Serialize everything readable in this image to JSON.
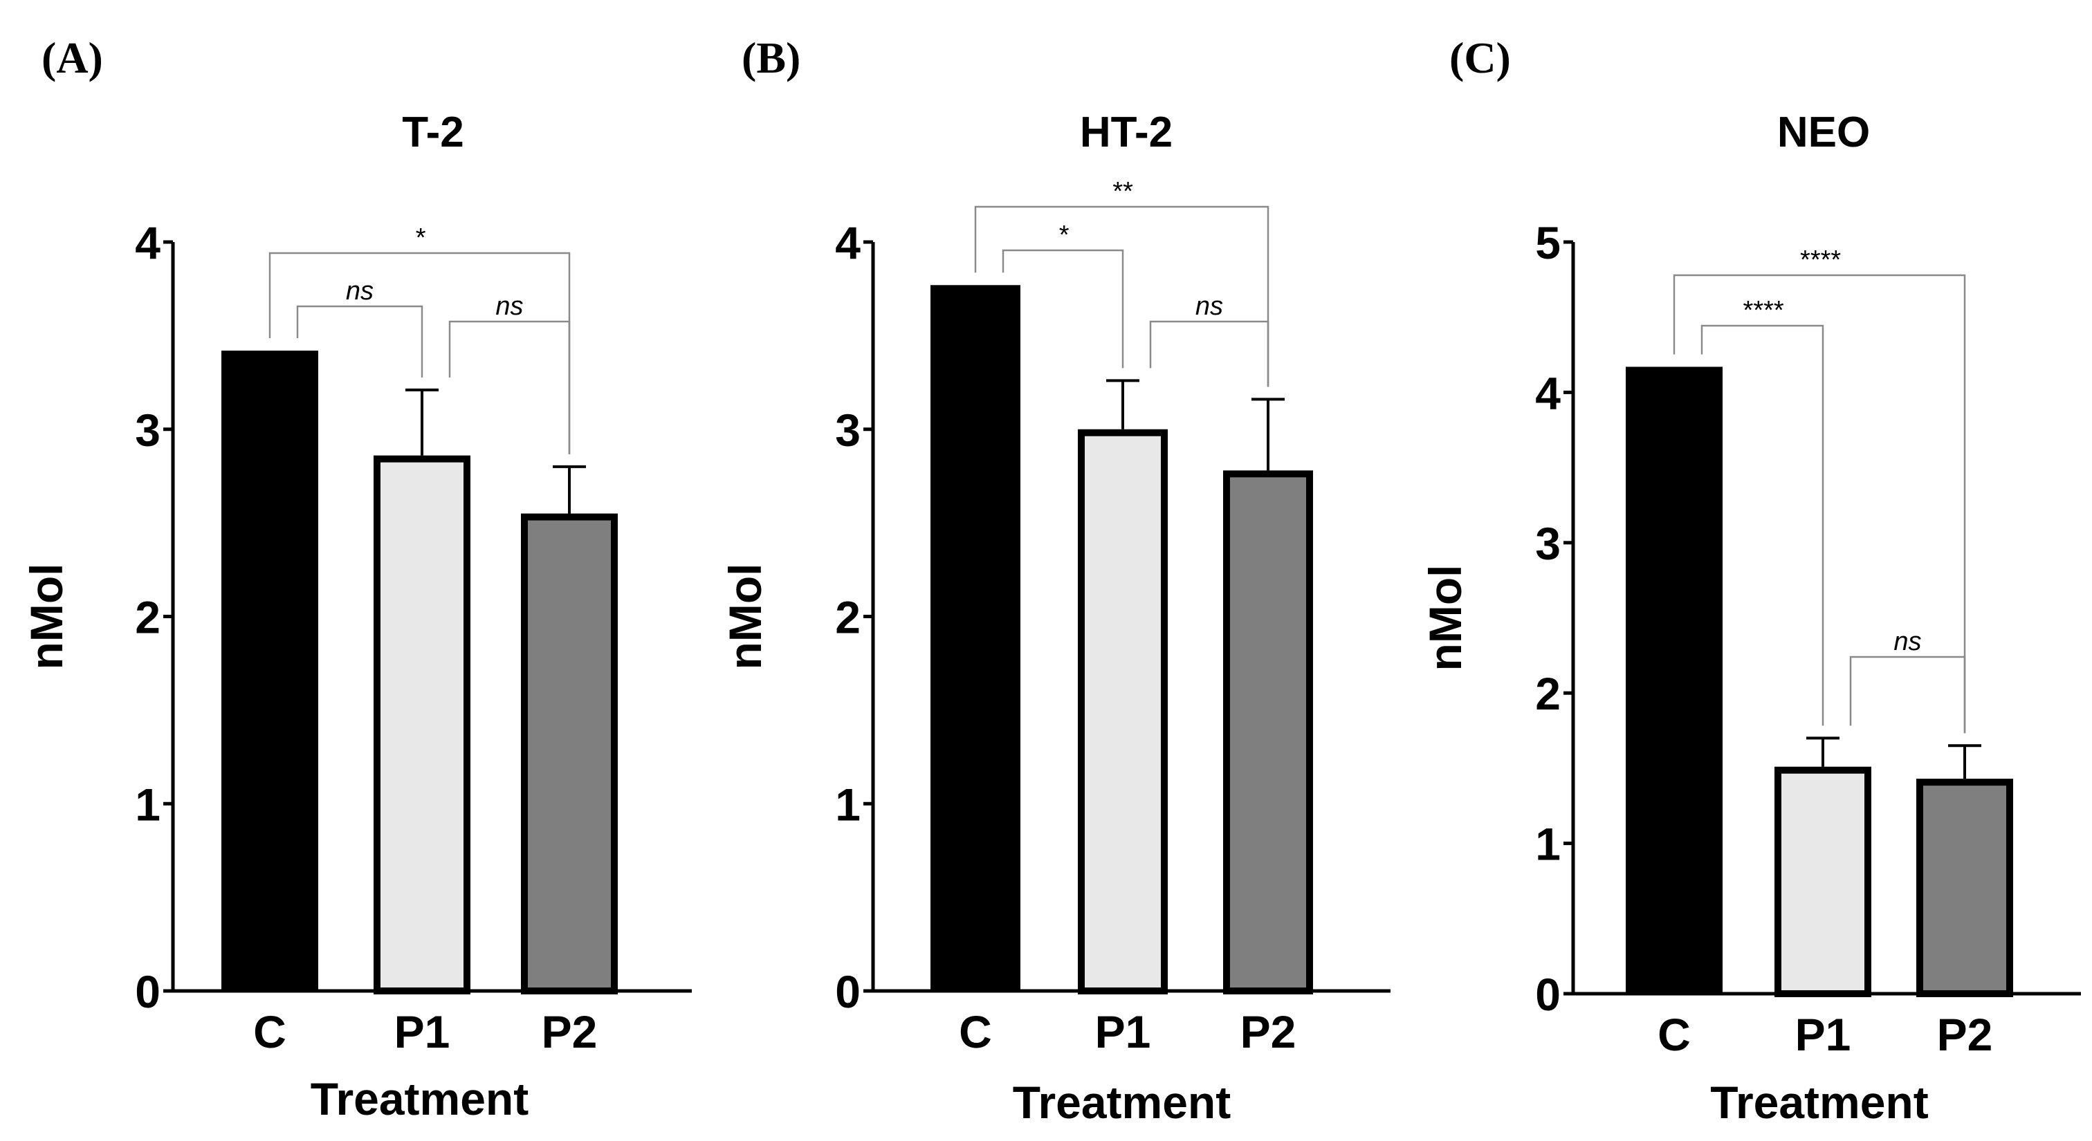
{
  "chart_data": [
    {
      "panel_label": "(A)",
      "type": "bar",
      "title": "T-2",
      "xlabel": "Treatment",
      "ylabel": "nMol",
      "ylim": [
        0,
        4
      ],
      "yticks": [
        "0",
        "1",
        "2",
        "3",
        "4"
      ],
      "categories": [
        "C",
        "P1",
        "P2"
      ],
      "values": [
        3.42,
        2.86,
        2.55
      ],
      "errors": [
        0,
        0.35,
        0.25
      ],
      "fills": [
        "#000000",
        "#e8e8e8",
        "#7f7f7f"
      ],
      "comparisons": [
        {
          "from": 0,
          "to": 1,
          "label": "ns"
        },
        {
          "from": 1,
          "to": 2,
          "label": "ns"
        },
        {
          "from": 0,
          "to": 2,
          "label": "*"
        }
      ]
    },
    {
      "panel_label": "(B)",
      "type": "bar",
      "title": "HT-2",
      "xlabel": "Treatment",
      "ylabel": "nMol",
      "ylim": [
        0,
        4
      ],
      "yticks": [
        "0",
        "1",
        "2",
        "3",
        "4"
      ],
      "categories": [
        "C",
        "P1",
        "P2"
      ],
      "values": [
        3.77,
        3.0,
        2.78
      ],
      "errors": [
        0,
        0.26,
        0.38
      ],
      "fills": [
        "#000000",
        "#e8e8e8",
        "#7f7f7f"
      ],
      "comparisons": [
        {
          "from": 0,
          "to": 1,
          "label": "*"
        },
        {
          "from": 1,
          "to": 2,
          "label": "ns"
        },
        {
          "from": 0,
          "to": 2,
          "label": "**"
        }
      ]
    },
    {
      "panel_label": "(C)",
      "type": "bar",
      "title": "NEO",
      "xlabel": "Treatment",
      "ylabel": "nMol",
      "ylim": [
        0,
        5
      ],
      "yticks": [
        "0",
        "1",
        "2",
        "3",
        "4",
        "5"
      ],
      "categories": [
        "C",
        "P1",
        "P2"
      ],
      "values": [
        4.17,
        1.51,
        1.43
      ],
      "errors": [
        0,
        0.19,
        0.22
      ],
      "fills": [
        "#000000",
        "#e8e8e8",
        "#7f7f7f"
      ],
      "comparisons": [
        {
          "from": 0,
          "to": 1,
          "label": "****"
        },
        {
          "from": 1,
          "to": 2,
          "label": "ns"
        },
        {
          "from": 0,
          "to": 2,
          "label": "****"
        }
      ]
    }
  ]
}
